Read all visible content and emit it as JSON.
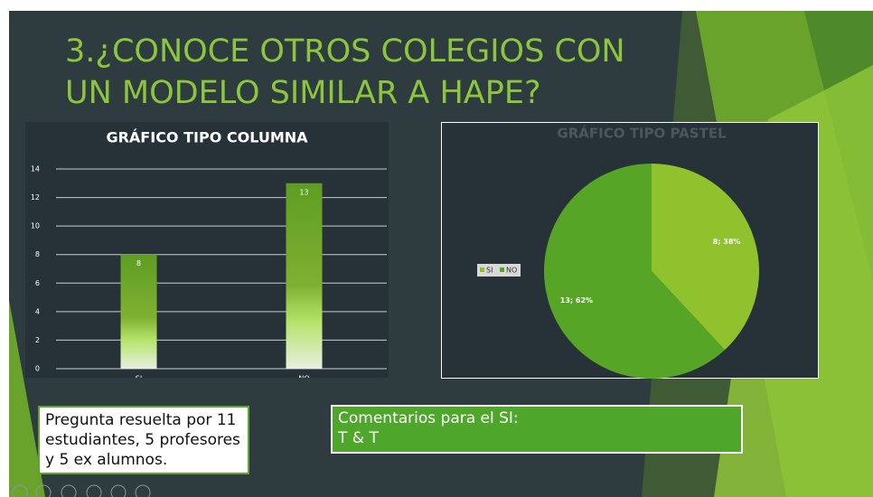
{
  "title": "3.¿CONOCE OTROS COLEGIOS CON UN MODELO SIMILAR A HAPE?",
  "chart_data": [
    {
      "type": "bar",
      "title": "GRÁFICO TIPO COLUMNA",
      "categories": [
        "SI",
        "NO"
      ],
      "values": [
        8,
        13
      ],
      "color": "#6ba32a",
      "ylim": [
        0,
        14
      ],
      "yticks": [
        0,
        2,
        4,
        6,
        8,
        10,
        12,
        14
      ],
      "grid": true
    },
    {
      "type": "pie",
      "title": "GRÁFICO TIPO PASTEL",
      "categories": [
        "SI",
        "NO"
      ],
      "values": [
        8,
        13
      ],
      "value_labels": [
        "8; 38%",
        "13; 62%"
      ],
      "colors": [
        "#8fc22c",
        "#56a526"
      ],
      "legend": "left"
    }
  ],
  "note": "Pregunta resuelta por 11 estudiantes, 5 profesores y 5 ex alumnos.",
  "comments": {
    "heading": "Comentarios para el SI:",
    "text": "T & T"
  }
}
